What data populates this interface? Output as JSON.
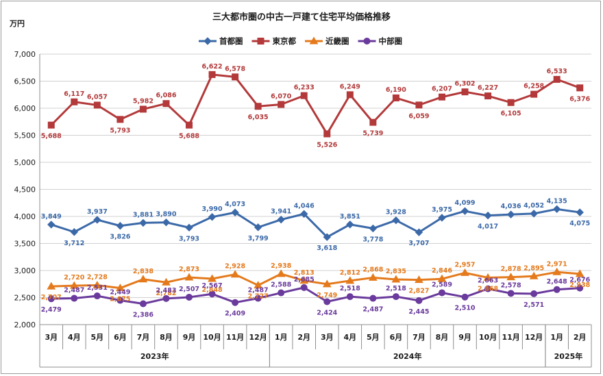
{
  "chart_data": {
    "type": "line",
    "title": "三大都市圏の中古一戸建て住宅平均価格推移",
    "ylabel": "万円",
    "ylim": [
      2000,
      7000
    ],
    "yticks": [
      "2,000",
      "2,500",
      "3,000",
      "3,500",
      "4,000",
      "4,500",
      "5,000",
      "5,500",
      "6,000",
      "6,500",
      "7,000"
    ],
    "categories": [
      "3月",
      "4月",
      "5月",
      "6月",
      "7月",
      "8月",
      "9月",
      "10月",
      "11月",
      "12月",
      "1月",
      "2月",
      "3月",
      "4月",
      "5月",
      "6月",
      "7月",
      "8月",
      "9月",
      "10月",
      "11月",
      "12月",
      "1月",
      "2月"
    ],
    "years": [
      {
        "label": "2023年",
        "start": 0,
        "end": 9
      },
      {
        "label": "2024年",
        "start": 10,
        "end": 21
      },
      {
        "label": "2025年",
        "start": 22,
        "end": 23
      }
    ],
    "legend_position": "top",
    "grid": true,
    "series": [
      {
        "name": "首都圏",
        "color": "#3b69a8",
        "marker": "diamond",
        "values": [
          3849,
          3712,
          3937,
          3826,
          3881,
          3890,
          3793,
          3990,
          4073,
          3799,
          3941,
          4046,
          3618,
          3851,
          3778,
          3928,
          3707,
          3975,
          4099,
          4017,
          4036,
          4052,
          4135,
          4075
        ],
        "labels": [
          "3,849",
          "3,712",
          "3,937",
          "3,826",
          "3,881",
          "3,890",
          "3,793",
          "3,990",
          "4,073",
          "3,799",
          "3,941",
          "4,046",
          "3,618",
          "3,851",
          "3,778",
          "3,928",
          "3,707",
          "3,975",
          "4,099",
          "4,017",
          "4,036",
          "4,052",
          "4,135",
          "4,075"
        ]
      },
      {
        "name": "東京都",
        "color": "#b3393a",
        "marker": "square",
        "values": [
          5688,
          6117,
          6057,
          5793,
          5982,
          6086,
          5688,
          6622,
          6578,
          6035,
          6070,
          6233,
          5526,
          6249,
          5739,
          6190,
          6059,
          6207,
          6302,
          6227,
          6105,
          6258,
          6533,
          6376
        ],
        "labels": [
          "5,688",
          "6,117",
          "6,057",
          "5,793",
          "5,982",
          "6,086",
          "5,688",
          "6,622",
          "6,578",
          "6,035",
          "6,070",
          "6,233",
          "5,526",
          "6,249",
          "5,739",
          "6,190",
          "6,059",
          "6,207",
          "6,302",
          "6,227",
          "6,105",
          "6,258",
          "6,533",
          "6,376"
        ]
      },
      {
        "name": "近畿圏",
        "color": "#e47a1c",
        "marker": "triangle",
        "values": [
          2707,
          2720,
          2728,
          2675,
          2838,
          2782,
          2873,
          2848,
          2928,
          2727,
          2938,
          2813,
          2749,
          2812,
          2868,
          2835,
          2827,
          2846,
          2957,
          2868,
          2878,
          2895,
          2971,
          2938
        ],
        "labels": [
          "2,707",
          "2,720",
          "2,728",
          "2,675",
          "2,838",
          "2,782",
          "2,873",
          "2,848",
          "2,928",
          "2,727",
          "2,938",
          "2,813",
          "2,749",
          "2,812",
          "2,868",
          "2,835",
          "2,827",
          "2,846",
          "2,957",
          "2,868",
          "2,878",
          "2,895",
          "2,971",
          "2,938"
        ]
      },
      {
        "name": "中部圏",
        "color": "#6a3a9c",
        "marker": "circle",
        "values": [
          2479,
          2487,
          2531,
          2449,
          2386,
          2483,
          2507,
          2567,
          2409,
          2487,
          2588,
          2685,
          2424,
          2518,
          2487,
          2518,
          2445,
          2589,
          2510,
          2663,
          2578,
          2571,
          2648,
          2676
        ],
        "labels": [
          "2,479",
          "2,487",
          "2,531",
          "2,449",
          "2,386",
          "2,483",
          "2,507",
          "2,567",
          "2,409",
          "2,487",
          "2,588",
          "2,685",
          "2,424",
          "2,518",
          "2,487",
          "2,518",
          "2,445",
          "2,589",
          "2,510",
          "2,663",
          "2,578",
          "2,571",
          "2,648",
          "2,676"
        ]
      }
    ]
  }
}
